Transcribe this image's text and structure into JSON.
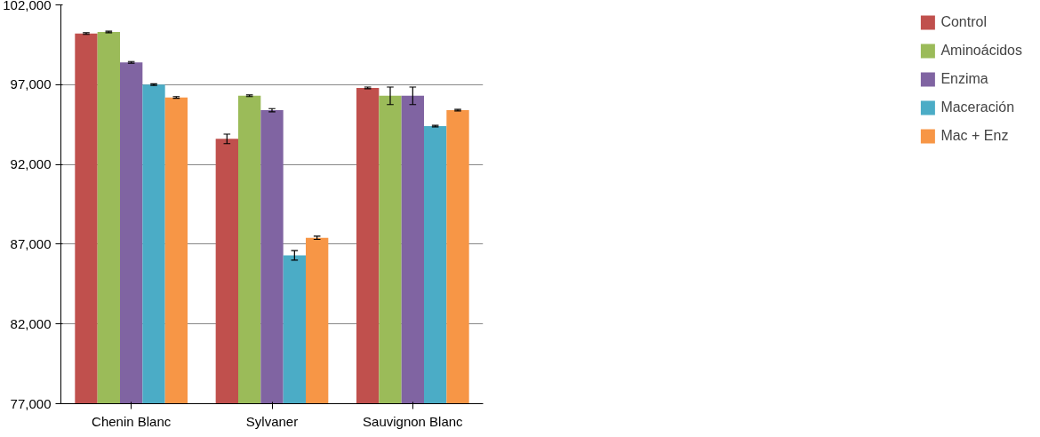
{
  "chart_data": {
    "type": "bar",
    "categories": [
      "Chenin Blanc",
      "Sylvaner",
      "Sauvignon Blanc"
    ],
    "series": [
      {
        "name": "Control",
        "color": "#c0504d",
        "values": [
          100200,
          93600,
          96800
        ],
        "errors": [
          50,
          300,
          50
        ]
      },
      {
        "name": "Aminoácidos",
        "color": "#9bbb59",
        "values": [
          100300,
          96300,
          96300
        ],
        "errors": [
          50,
          50,
          550
        ]
      },
      {
        "name": "Enzima",
        "color": "#8064a2",
        "values": [
          98400,
          95400,
          96300
        ],
        "errors": [
          50,
          100,
          550
        ]
      },
      {
        "name": "Maceración",
        "color": "#4bacc6",
        "values": [
          97000,
          86300,
          94400
        ],
        "errors": [
          50,
          300,
          50
        ]
      },
      {
        "name": "Mac + Enz",
        "color": "#f79646",
        "values": [
          96200,
          87400,
          95400
        ],
        "errors": [
          50,
          100,
          50
        ]
      }
    ],
    "ylim": [
      77000,
      102000
    ],
    "yticks": [
      {
        "value": 77000,
        "label": "77,000"
      },
      {
        "value": 82000,
        "label": "82,000"
      },
      {
        "value": 87000,
        "label": "87,000"
      },
      {
        "value": 92000,
        "label": "92,000"
      },
      {
        "value": 97000,
        "label": "97,000"
      },
      {
        "value": 102000,
        "label": "102,000"
      }
    ],
    "grid": "y",
    "legend": "right"
  }
}
